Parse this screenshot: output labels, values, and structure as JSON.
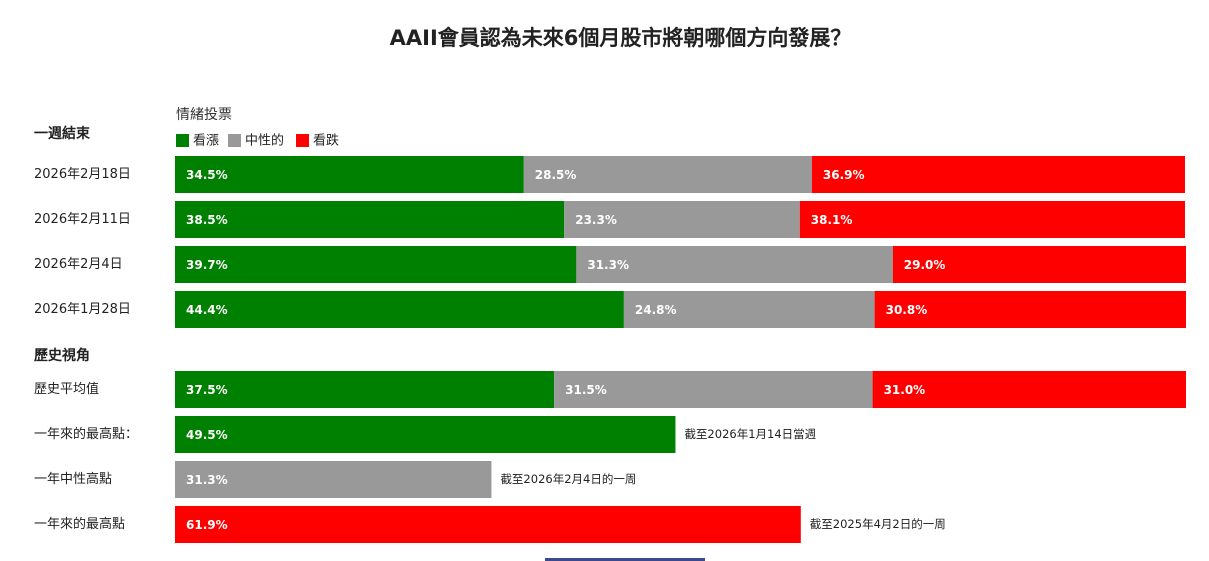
{
  "chart_data": {
    "type": "bar",
    "stacked": true,
    "orientation": "horizontal",
    "title": "AAII會員認為未來6個月股市將朝哪個方向發展？",
    "legend_title": "情緒投票",
    "legend_placement": "top-left",
    "grid": false,
    "xlim": [
      0,
      100
    ],
    "unit": "%",
    "series": [
      {
        "name": "看漲",
        "color": "#008000"
      },
      {
        "name": "中性的",
        "color": "#999999"
      },
      {
        "name": "看跌",
        "color": "#ff0000"
      }
    ],
    "groups": [
      {
        "label": "一週結束",
        "rows": [
          {
            "category": "2026年2月18日",
            "values": [
              34.5,
              28.5,
              36.9
            ],
            "labels": [
              "34.5%",
              "28.5%",
              "36.9%"
            ]
          },
          {
            "category": "2026年2月11日",
            "values": [
              38.5,
              23.3,
              38.1
            ],
            "labels": [
              "38.5%",
              "23.3%",
              "38.1%"
            ]
          },
          {
            "category": "2026年2月4日",
            "values": [
              39.7,
              31.3,
              29.0
            ],
            "labels": [
              "39.7%",
              "31.3%",
              "29.0%"
            ]
          },
          {
            "category": "2026年1月28日",
            "values": [
              44.4,
              24.8,
              30.8
            ],
            "labels": [
              "44.4%",
              "24.8%",
              "30.8%"
            ]
          }
        ]
      },
      {
        "label": "歷史視角",
        "rows": [
          {
            "category": "歷史平均值",
            "values": [
              37.5,
              31.5,
              31.0
            ],
            "labels": [
              "37.5%",
              "31.5%",
              "31.0%"
            ]
          },
          {
            "category": "一年來的最高點：",
            "values": [
              49.5,
              null,
              null
            ],
            "labels": [
              "49.5%",
              "",
              ""
            ],
            "note": "截至2026年1月14日當週"
          },
          {
            "category": "一年中性高點",
            "values": [
              null,
              31.3,
              null
            ],
            "labels": [
              "",
              "31.3%",
              ""
            ],
            "note": "截至2026年2月4日的一周"
          },
          {
            "category": "一年來的最高點",
            "values": [
              null,
              null,
              61.9
            ],
            "labels": [
              "",
              "",
              "61.9%"
            ],
            "note": "截至2025年4月2日的一周"
          }
        ]
      }
    ]
  }
}
